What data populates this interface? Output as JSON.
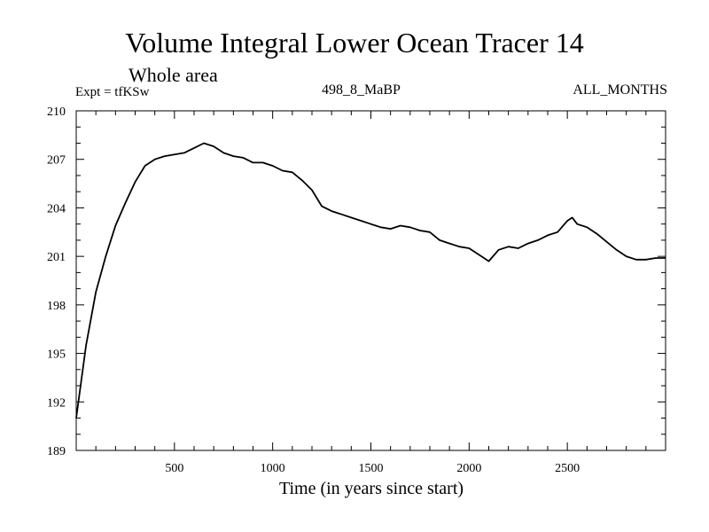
{
  "chart_data": {
    "type": "line",
    "title": "Volume Integral Lower Ocean Tracer 14",
    "subtitle": "Whole area",
    "header_left": "Expt = tfKSw",
    "header_center": "498_8_MaBP",
    "header_right": "ALL_MONTHS",
    "xlabel": "Time (in years since start)",
    "ylabel": "",
    "xlim": [
      0,
      3000
    ],
    "ylim": [
      189,
      210
    ],
    "x_ticks": [
      500,
      1000,
      1500,
      2000,
      2500
    ],
    "y_ticks": [
      189,
      192,
      195,
      198,
      201,
      204,
      207,
      210
    ],
    "x_minor_step": 100,
    "y_minor_step": 1,
    "series": [
      {
        "name": "Tracer 14",
        "color": "#000000",
        "x": [
          0,
          50,
          100,
          150,
          200,
          250,
          300,
          350,
          400,
          450,
          500,
          550,
          600,
          650,
          700,
          750,
          800,
          850,
          900,
          950,
          1000,
          1050,
          1100,
          1150,
          1200,
          1250,
          1300,
          1350,
          1400,
          1450,
          1500,
          1550,
          1600,
          1650,
          1700,
          1750,
          1800,
          1850,
          1900,
          1950,
          2000,
          2050,
          2100,
          2150,
          2200,
          2250,
          2300,
          2350,
          2400,
          2450,
          2500,
          2525,
          2550,
          2600,
          2650,
          2700,
          2750,
          2800,
          2850,
          2900,
          2950,
          3000
        ],
        "y": [
          191.0,
          195.5,
          198.8,
          201.0,
          202.9,
          204.3,
          205.6,
          206.6,
          207.0,
          207.2,
          207.3,
          207.4,
          207.7,
          208.0,
          207.8,
          207.4,
          207.2,
          207.1,
          206.8,
          206.8,
          206.6,
          206.3,
          206.2,
          205.7,
          205.1,
          204.1,
          203.8,
          203.6,
          203.4,
          203.2,
          203.0,
          202.8,
          202.7,
          202.9,
          202.8,
          202.6,
          202.5,
          202.0,
          201.8,
          201.6,
          201.5,
          201.1,
          200.7,
          201.4,
          201.6,
          201.5,
          201.8,
          202.0,
          202.3,
          202.5,
          203.2,
          203.4,
          203.0,
          202.8,
          202.4,
          201.9,
          201.4,
          201.0,
          200.8,
          200.8,
          200.9,
          200.9
        ]
      }
    ]
  }
}
